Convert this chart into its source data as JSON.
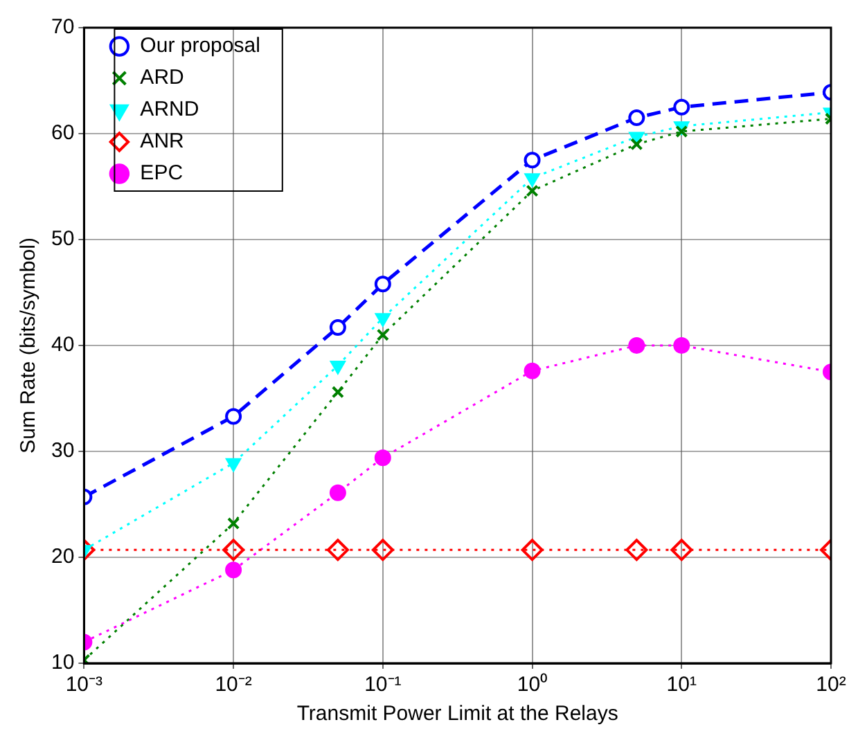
{
  "chart_data": {
    "type": "line",
    "xlabel": "Transmit Power Limit at the Relays",
    "ylabel": "Sum Rate (bits/symbol)",
    "x": [
      0.001,
      0.01,
      0.05,
      0.1,
      1,
      5,
      10,
      100
    ],
    "series": [
      {
        "name": "Our proposal",
        "color": "#0000ff",
        "marker": "circle",
        "line_style": "dashed",
        "values": [
          25.7,
          33.3,
          41.7,
          45.8,
          57.5,
          61.5,
          62.5,
          63.9
        ]
      },
      {
        "name": "ARD",
        "color": "#008000",
        "marker": "cross",
        "line_style": "dotted",
        "values": [
          10.3,
          23.2,
          35.6,
          41.0,
          54.6,
          59.0,
          60.2,
          61.4
        ]
      },
      {
        "name": "ARND",
        "color": "#00ffff",
        "marker": "triangle",
        "line_style": "dotted",
        "values": [
          20.7,
          28.9,
          38.1,
          42.6,
          55.8,
          59.7,
          60.7,
          62.0
        ]
      },
      {
        "name": "ANR",
        "color": "#ff0000",
        "marker": "diamond",
        "line_style": "dotted",
        "values": [
          20.7,
          20.7,
          20.7,
          20.7,
          20.7,
          20.7,
          20.7,
          20.7
        ]
      },
      {
        "name": "EPC",
        "color": "#ff00ff",
        "marker": "circle",
        "line_style": "dotted",
        "values": [
          12.0,
          18.8,
          26.1,
          29.4,
          37.6,
          40.0,
          40.0,
          37.5
        ]
      }
    ],
    "log": "x",
    "xlim": [
      0.001,
      100
    ],
    "ylim": [
      10,
      70
    ],
    "xticks": [
      {
        "value": 0.001,
        "label": "10⁻³"
      },
      {
        "value": 0.01,
        "label": "10⁻²"
      },
      {
        "value": 0.1,
        "label": "10⁻¹"
      },
      {
        "value": 1,
        "label": "10⁰"
      },
      {
        "value": 10,
        "label": "10¹"
      },
      {
        "value": 100,
        "label": "10²"
      }
    ],
    "yticks": [
      10,
      20,
      30,
      40,
      50,
      60,
      70
    ],
    "grid": true,
    "legend": "top left"
  }
}
